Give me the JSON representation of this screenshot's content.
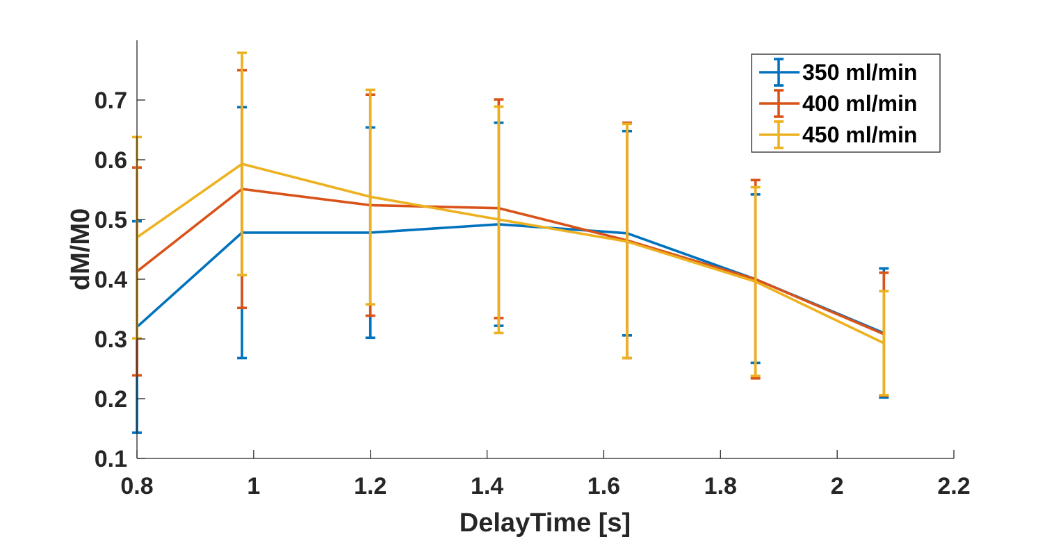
{
  "chart_data": {
    "type": "line",
    "title": "",
    "xlabel": "DelayTime [s]",
    "ylabel": "dM/M0",
    "xlim": [
      0.8,
      2.2
    ],
    "ylim": [
      0.1,
      0.8
    ],
    "xticks": [
      0.8,
      1.0,
      1.2,
      1.4,
      1.6,
      1.8,
      2.0,
      2.2
    ],
    "xtick_labels": [
      "0.8",
      "1",
      "1.2",
      "1.4",
      "1.6",
      "1.8",
      "2",
      "2.2"
    ],
    "yticks": [
      0.1,
      0.2,
      0.3,
      0.4,
      0.5,
      0.6,
      0.7
    ],
    "ytick_labels": [
      "0.1",
      "0.2",
      "0.3",
      "0.4",
      "0.5",
      "0.6",
      "0.7"
    ],
    "grid": false,
    "legend_position": "top-right",
    "x": [
      0.8,
      0.98,
      1.2,
      1.42,
      1.64,
      1.86,
      2.08
    ],
    "series": [
      {
        "name": "350 ml/min",
        "color": "#0072BD",
        "values": [
          0.32,
          0.478,
          0.478,
          0.492,
          0.477,
          0.4,
          0.31
        ],
        "lower": [
          0.143,
          0.268,
          0.302,
          0.322,
          0.306,
          0.26,
          0.202
        ],
        "upper": [
          0.497,
          0.688,
          0.654,
          0.662,
          0.648,
          0.542,
          0.418
        ]
      },
      {
        "name": "400 ml/min",
        "color": "#D95319",
        "values": [
          0.413,
          0.551,
          0.524,
          0.519,
          0.465,
          0.4,
          0.308
        ],
        "lower": [
          0.239,
          0.352,
          0.339,
          0.335,
          0.268,
          0.234,
          0.205
        ],
        "upper": [
          0.587,
          0.75,
          0.709,
          0.701,
          0.662,
          0.566,
          0.411
        ]
      },
      {
        "name": "450 ml/min",
        "color": "#EDB120",
        "values": [
          0.47,
          0.593,
          0.538,
          0.5,
          0.463,
          0.396,
          0.293
        ],
        "lower": [
          0.301,
          0.407,
          0.358,
          0.31,
          0.268,
          0.238,
          0.206
        ],
        "upper": [
          0.638,
          0.779,
          0.717,
          0.689,
          0.66,
          0.554,
          0.38
        ]
      }
    ]
  }
}
